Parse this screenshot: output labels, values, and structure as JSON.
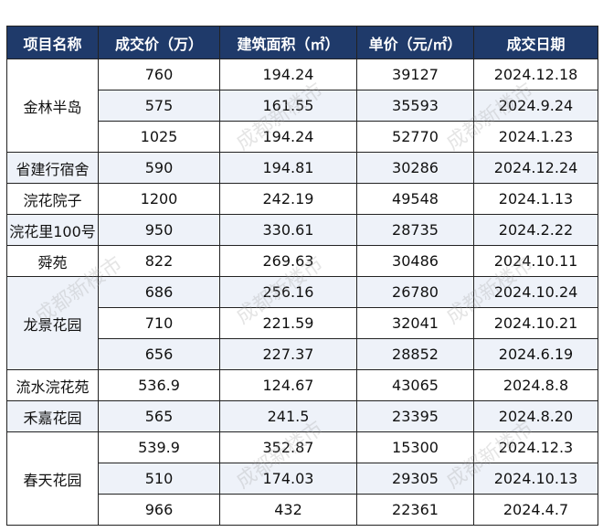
{
  "headers": [
    "项目名称",
    "成交价（万）",
    "建筑面积（㎡）",
    "单价（元/㎡）",
    "成交日期"
  ],
  "watermark": "成都新楼市",
  "groups": [
    {
      "name": "金林半岛",
      "rows": [
        [
          "760",
          "194.24",
          "39127",
          "2024.12.18"
        ],
        [
          "575",
          "161.55",
          "35593",
          "2024.9.24"
        ],
        [
          "1025",
          "194.24",
          "52770",
          "2024.1.23"
        ]
      ]
    },
    {
      "name": "省建行宿舍",
      "rows": [
        [
          "590",
          "194.81",
          "30286",
          "2024.12.24"
        ]
      ]
    },
    {
      "name": "浣花院子",
      "rows": [
        [
          "1200",
          "242.19",
          "49548",
          "2024.1.13"
        ]
      ]
    },
    {
      "name": "浣花里100号",
      "rows": [
        [
          "950",
          "330.61",
          "28735",
          "2024.2.22"
        ]
      ]
    },
    {
      "name": "舜苑",
      "rows": [
        [
          "822",
          "269.63",
          "30486",
          "2024.10.11"
        ]
      ]
    },
    {
      "name": "龙景花园",
      "rows": [
        [
          "686",
          "256.16",
          "26780",
          "2024.10.24"
        ],
        [
          "710",
          "221.59",
          "32041",
          "2024.10.21"
        ],
        [
          "656",
          "227.37",
          "28852",
          "2024.6.19"
        ]
      ]
    },
    {
      "name": "流水浣花苑",
      "rows": [
        [
          "536.9",
          "124.67",
          "43065",
          "2024.8.8"
        ]
      ]
    },
    {
      "name": "禾嘉花园",
      "rows": [
        [
          "565",
          "241.5",
          "23395",
          "2024.8.20"
        ]
      ]
    },
    {
      "name": "春天花园",
      "rows": [
        [
          "539.9",
          "352.87",
          "15300",
          "2024.12.3"
        ],
        [
          "510",
          "174.03",
          "29305",
          "2024.10.13"
        ],
        [
          "966",
          "432",
          "22361",
          "2024.4.7"
        ]
      ]
    }
  ]
}
